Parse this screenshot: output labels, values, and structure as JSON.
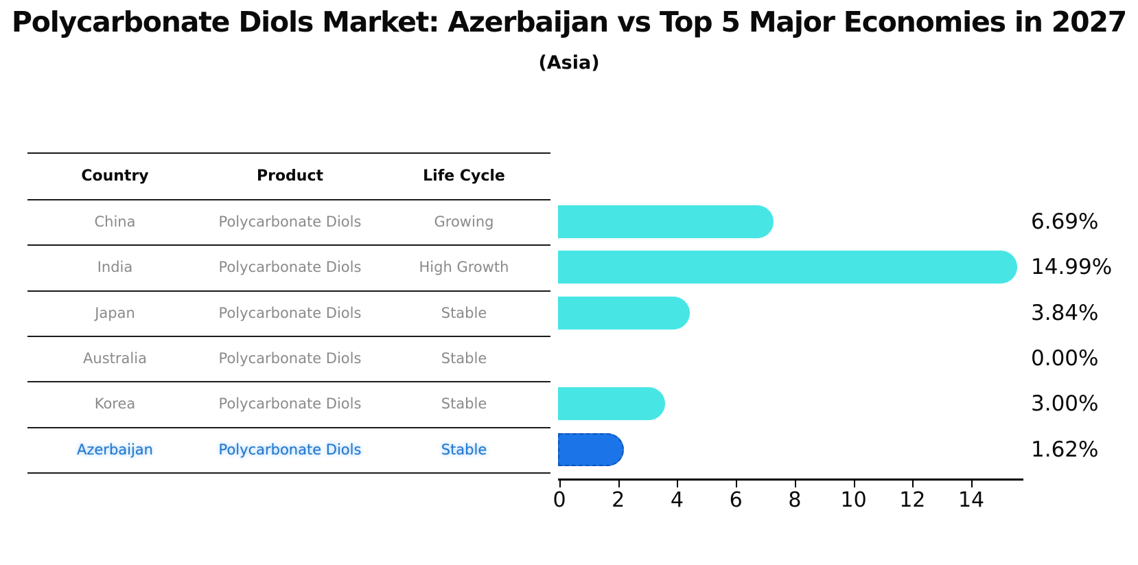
{
  "title": "Polycarbonate Diols Market: Azerbaijan vs Top 5 Major Economies in 2027",
  "subtitle": "(Asia)",
  "table": {
    "headers": [
      "Country",
      "Product",
      "Life Cycle"
    ],
    "rows": [
      {
        "country": "China",
        "product": "Polycarbonate Diols",
        "life_cycle": "Growing",
        "value": 6.69,
        "value_label": "6.69%",
        "highlight": false
      },
      {
        "country": "India",
        "product": "Polycarbonate Diols",
        "life_cycle": "High Growth",
        "value": 14.99,
        "value_label": "14.99%",
        "highlight": false
      },
      {
        "country": "Japan",
        "product": "Polycarbonate Diols",
        "life_cycle": "Stable",
        "value": 3.84,
        "value_label": "3.84%",
        "highlight": false
      },
      {
        "country": "Australia",
        "product": "Polycarbonate Diols",
        "life_cycle": "Stable",
        "value": 0.0,
        "value_label": "0.00%",
        "highlight": false
      },
      {
        "country": "Korea",
        "product": "Polycarbonate Diols",
        "life_cycle": "Stable",
        "value": 3.0,
        "value_label": "3.00%",
        "highlight": false
      },
      {
        "country": "Azerbaijan",
        "product": "Polycarbonate Diols",
        "life_cycle": "Stable",
        "value": 1.62,
        "value_label": "1.62%",
        "highlight": true
      }
    ]
  },
  "axis": {
    "tick_labels": [
      "0",
      "2",
      "4",
      "6",
      "8",
      "10",
      "12",
      "14"
    ],
    "tick_values": [
      0,
      2,
      4,
      6,
      8,
      10,
      12,
      14
    ]
  },
  "colors": {
    "bar": "#48E5E5",
    "highlight_bar": "#1B75E8",
    "highlight_bar_border": "#0D53B8",
    "highlight_text": "#2176C9",
    "row_text": "#8a8a8a",
    "header_text": "#0a0a0a",
    "axis": "#000000"
  },
  "chart_data": {
    "type": "bar",
    "orientation": "horizontal",
    "title": "Polycarbonate Diols Market: Azerbaijan vs Top 5 Major Economies in 2027",
    "subtitle": "(Asia)",
    "categories": [
      "China",
      "India",
      "Japan",
      "Australia",
      "Korea",
      "Azerbaijan"
    ],
    "values": [
      6.69,
      14.99,
      3.84,
      0.0,
      3.0,
      1.62
    ],
    "value_labels": [
      "6.69%",
      "14.99%",
      "3.84%",
      "0.00%",
      "3.00%",
      "1.62%"
    ],
    "xlabel": "",
    "ylabel": "",
    "xlim": [
      0,
      15.8
    ],
    "xticks": [
      0,
      2,
      4,
      6,
      8,
      10,
      12,
      14
    ],
    "grid": false,
    "legend": "none",
    "highlighted_category": "Azerbaijan",
    "table_columns": [
      "Country",
      "Product",
      "Life Cycle"
    ],
    "table_rows": [
      [
        "China",
        "Polycarbonate Diols",
        "Growing"
      ],
      [
        "India",
        "Polycarbonate Diols",
        "High Growth"
      ],
      [
        "Japan",
        "Polycarbonate Diols",
        "Stable"
      ],
      [
        "Australia",
        "Polycarbonate Diols",
        "Stable"
      ],
      [
        "Korea",
        "Polycarbonate Diols",
        "Stable"
      ],
      [
        "Azerbaijan",
        "Polycarbonate Diols",
        "Stable"
      ]
    ]
  }
}
